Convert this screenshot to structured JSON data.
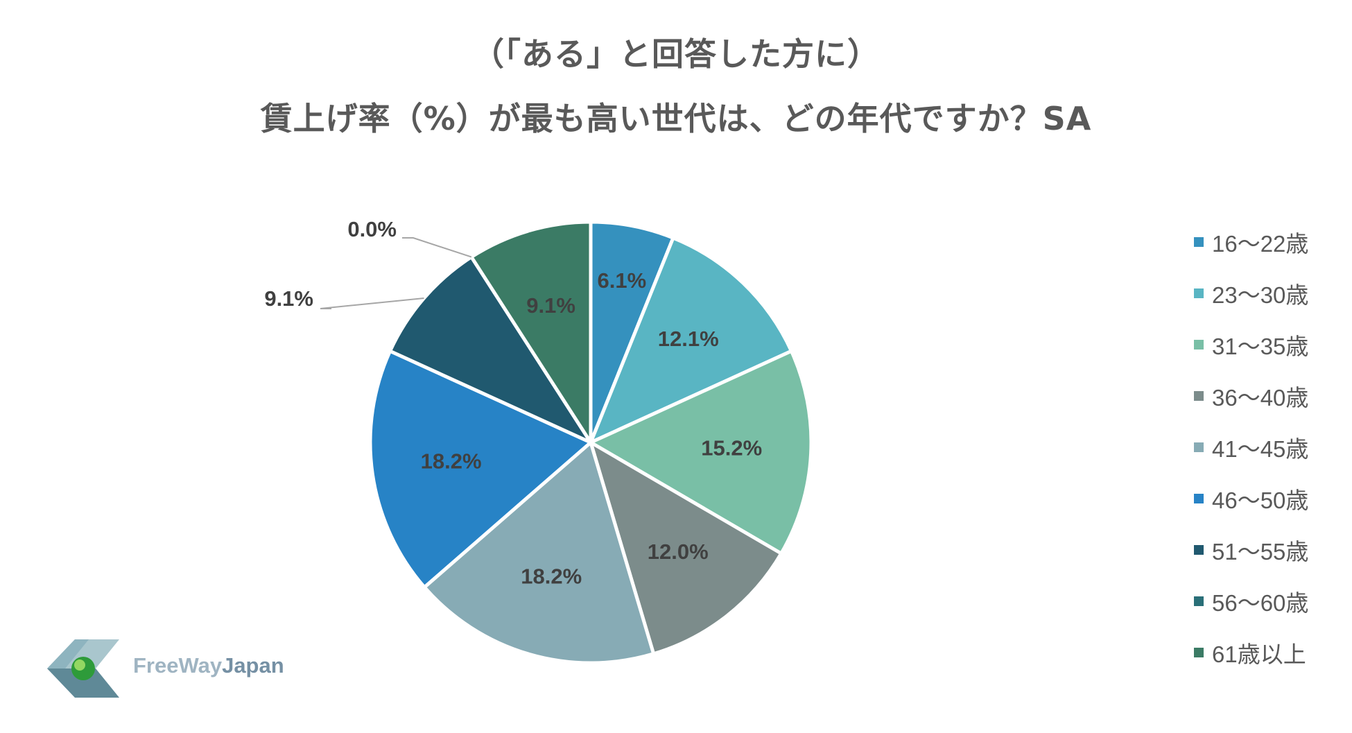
{
  "title": {
    "line1": "（「ある」と回答した方に）",
    "line2": "賃上げ率（%）が最も高い世代は、どの年代ですか？SA"
  },
  "chart_data": {
    "type": "pie",
    "title": "（「ある」と回答した方に） 賃上げ率（%）が最も高い世代は、どの年代ですか？SA",
    "legend_position": "right",
    "slices": [
      {
        "name": "16〜22歳",
        "value": 6.1,
        "label": "6.1%",
        "color": "#3591be"
      },
      {
        "name": "23〜30歳",
        "value": 12.1,
        "label": "12.1%",
        "color": "#59b5c3"
      },
      {
        "name": "31〜35歳",
        "value": 15.2,
        "label": "15.2%",
        "color": "#79bfa6"
      },
      {
        "name": "36〜40歳",
        "value": 12.0,
        "label": "12.0%",
        "color": "#7c8c8b"
      },
      {
        "name": "41〜45歳",
        "value": 18.2,
        "label": "18.2%",
        "color": "#87abb5"
      },
      {
        "name": "46〜50歳",
        "value": 18.2,
        "label": "18.2%",
        "color": "#2783c6"
      },
      {
        "name": "51〜55歳",
        "value": 9.1,
        "label": "9.1%",
        "color": "#20596f"
      },
      {
        "name": "56〜60歳",
        "value": 0.0,
        "label": "0.0%",
        "color": "#2a6f78"
      },
      {
        "name": "61歳以上",
        "value": 9.1,
        "label": "9.1%",
        "color": "#3b7b65"
      }
    ]
  },
  "logo": {
    "text_prefix": "FreeWay",
    "text_suffix": "Japan"
  }
}
